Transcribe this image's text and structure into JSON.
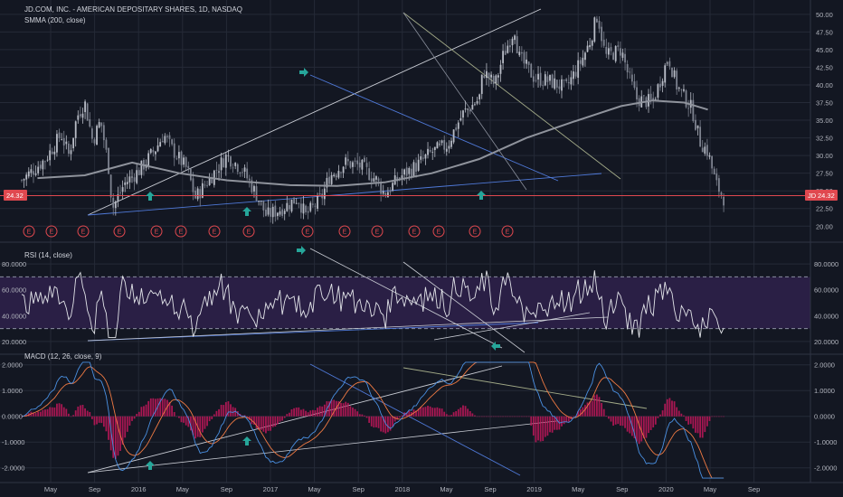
{
  "header": {
    "title": "JD.COM, INC. - AMERICAN DEPOSITARY SHARES, 1D, NASDAQ",
    "indicator": "SMMA (200, close)"
  },
  "colors": {
    "background": "#131722",
    "grid": "#252a37",
    "candle_up": "#b8bcc6",
    "candle_down": "#7d828f",
    "smma": "#8f939c",
    "trend_blue": "#4f79d8",
    "trend_light": "#c9ccd4",
    "trend_olive": "#a3ab88",
    "rsi_line": "#e1e3e8",
    "rsi_band": "#2a1f45",
    "macd_line": "#4a90e2",
    "signal_line": "#ef7a43",
    "hist": "#c2185b",
    "arrow": "#26a69a",
    "price_tag": "#e0484f",
    "earnings": "#e0484f"
  },
  "price_tag": {
    "left": "24.32",
    "right_symbol": "JD",
    "right_value": "24.32"
  },
  "earnings_label": "E",
  "rsi_title": "RSI (14, close)",
  "macd_title": "MACD (12, 26, close, 9)",
  "chart_data": [
    {
      "type": "candlestick",
      "title": "JD.COM, INC. - AMERICAN DEPOSITARY SHARES, 1D, NASDAQ",
      "indicator": "SMMA (200, close)",
      "y_ticks": [
        "50.00",
        "47.50",
        "45.00",
        "42.50",
        "40.00",
        "37.50",
        "35.00",
        "32.50",
        "30.00",
        "27.50",
        "25.00",
        "22.50",
        "20.00"
      ],
      "ylim": [
        18.5,
        51.0
      ],
      "last_price": 24.32,
      "price_path": [
        [
          0,
          26.5
        ],
        [
          0.03,
          29.5
        ],
        [
          0.05,
          33
        ],
        [
          0.06,
          30
        ],
        [
          0.07,
          35.5
        ],
        [
          0.08,
          37.5
        ],
        [
          0.09,
          32
        ],
        [
          0.1,
          35
        ],
        [
          0.11,
          28.5
        ],
        [
          0.115,
          22.5
        ],
        [
          0.13,
          26
        ],
        [
          0.15,
          28
        ],
        [
          0.17,
          31
        ],
        [
          0.18,
          33
        ],
        [
          0.19,
          31
        ],
        [
          0.21,
          28
        ],
        [
          0.22,
          24
        ],
        [
          0.24,
          27
        ],
        [
          0.26,
          30
        ],
        [
          0.28,
          28
        ],
        [
          0.3,
          24
        ],
        [
          0.31,
          21.5
        ],
        [
          0.33,
          22.5
        ],
        [
          0.35,
          24
        ],
        [
          0.36,
          21.5
        ],
        [
          0.38,
          24
        ],
        [
          0.39,
          27
        ],
        [
          0.41,
          29
        ],
        [
          0.43,
          28.5
        ],
        [
          0.45,
          26.5
        ],
        [
          0.46,
          24.5
        ],
        [
          0.48,
          27
        ],
        [
          0.5,
          28.5
        ],
        [
          0.52,
          30.5
        ],
        [
          0.54,
          31.5
        ],
        [
          0.55,
          34
        ],
        [
          0.56,
          36
        ],
        [
          0.58,
          38
        ],
        [
          0.585,
          42
        ],
        [
          0.6,
          40
        ],
        [
          0.61,
          44
        ],
        [
          0.625,
          48
        ],
        [
          0.63,
          44
        ],
        [
          0.65,
          41
        ],
        [
          0.67,
          40.5
        ],
        [
          0.69,
          39.5
        ],
        [
          0.71,
          43.5
        ],
        [
          0.72,
          46
        ],
        [
          0.73,
          50
        ],
        [
          0.74,
          44
        ],
        [
          0.76,
          45
        ],
        [
          0.77,
          41
        ],
        [
          0.78,
          38
        ],
        [
          0.8,
          37.5
        ],
        [
          0.82,
          44
        ],
        [
          0.83,
          40
        ],
        [
          0.85,
          36.5
        ],
        [
          0.86,
          32
        ],
        [
          0.87,
          30.5
        ],
        [
          0.88,
          26
        ],
        [
          0.89,
          24
        ]
      ],
      "smma_path": [
        [
          0.02,
          26.8
        ],
        [
          0.08,
          27.2
        ],
        [
          0.14,
          29
        ],
        [
          0.2,
          27.5
        ],
        [
          0.26,
          26.5
        ],
        [
          0.34,
          25.8
        ],
        [
          0.4,
          25.7
        ],
        [
          0.46,
          26.2
        ],
        [
          0.52,
          27.5
        ],
        [
          0.58,
          29.5
        ],
        [
          0.64,
          32.5
        ],
        [
          0.7,
          34.8
        ],
        [
          0.76,
          37
        ],
        [
          0.8,
          37.8
        ],
        [
          0.84,
          37.5
        ],
        [
          0.87,
          36.5
        ]
      ],
      "earnings_count": 15,
      "up_arrows": 3,
      "down_arrows": 1
    },
    {
      "type": "line",
      "title": "RSI (14, close)",
      "y_ticks": [
        "80.0000",
        "60.0000",
        "40.0000",
        "20.0000"
      ],
      "ylim": [
        15,
        92
      ],
      "band": [
        30,
        70
      ]
    },
    {
      "type": "line",
      "title": "MACD (12, 26, close, 9)",
      "y_ticks": [
        "2.0000",
        "1.0000",
        "0.0000",
        "-1.0000",
        "-2.0000"
      ],
      "ylim": [
        -2.5,
        2.2
      ],
      "series": [
        {
          "values": []
        },
        {
          "values": []
        }
      ]
    }
  ],
  "x_axis": [
    "May",
    "Sep",
    "2016",
    "May",
    "Sep",
    "2017",
    "May",
    "Sep",
    "2018",
    "May",
    "Sep",
    "2019",
    "May",
    "Sep",
    "2020",
    "May",
    "Sep"
  ]
}
